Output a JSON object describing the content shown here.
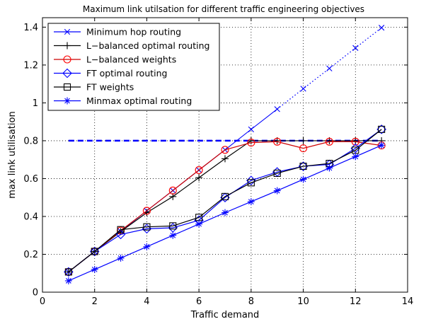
{
  "chart_data": {
    "type": "line",
    "title": "Maximum link utilsation for different traffic engineering objectives",
    "xlabel": "Traffic demand",
    "ylabel": "max link utilisation",
    "xlim": [
      0,
      14
    ],
    "ylim": [
      0,
      1.45
    ],
    "xticks": [
      0,
      2,
      4,
      6,
      8,
      10,
      12,
      14
    ],
    "yticks": [
      0,
      0.2,
      0.4,
      0.6,
      0.8,
      1,
      1.2,
      1.4
    ],
    "grid": true,
    "legend_position": "top-left",
    "series": [
      {
        "name": "Minimum hop routing",
        "color": "#0000ff",
        "marker": "x",
        "x": [
          1,
          2,
          3,
          4,
          5,
          6,
          7,
          8,
          9,
          10,
          11,
          12,
          13
        ],
        "values": [
          0.107,
          0.215,
          0.322,
          0.43,
          0.537,
          0.645,
          0.752,
          0.86,
          0.967,
          1.075,
          1.182,
          1.29,
          1.397
        ],
        "solid_until_x": 9
      },
      {
        "name": "L−balanced optimal routing",
        "color": "#000000",
        "marker": "plus",
        "x": [
          1,
          2,
          3,
          4,
          5,
          6,
          7,
          8,
          9,
          10,
          11,
          12,
          13
        ],
        "values": [
          0.107,
          0.215,
          0.32,
          0.42,
          0.505,
          0.605,
          0.705,
          0.8,
          0.8,
          0.8,
          0.8,
          0.8,
          0.8
        ]
      },
      {
        "name": "L−balanced weights",
        "color": "#ff0000",
        "line_color": "#cc0000",
        "marker": "circle",
        "x": [
          1,
          2,
          3,
          4,
          5,
          6,
          7,
          8,
          9,
          10,
          11,
          12,
          13
        ],
        "values": [
          0.107,
          0.215,
          0.325,
          0.43,
          0.537,
          0.645,
          0.752,
          0.79,
          0.795,
          0.76,
          0.795,
          0.795,
          0.775
        ]
      },
      {
        "name": "FT optimal routing",
        "color": "#0000ff",
        "marker": "diamond",
        "x": [
          1,
          2,
          3,
          4,
          5,
          6,
          7,
          8,
          9,
          10,
          11,
          12,
          13
        ],
        "values": [
          0.107,
          0.215,
          0.305,
          0.335,
          0.34,
          0.38,
          0.5,
          0.59,
          0.635,
          0.665,
          0.675,
          0.76,
          0.86
        ]
      },
      {
        "name": "FT weights",
        "color": "#000000",
        "marker": "square",
        "x": [
          1,
          2,
          3,
          4,
          5,
          6,
          7,
          8,
          9,
          10,
          11,
          12,
          13
        ],
        "values": [
          0.107,
          0.215,
          0.33,
          0.345,
          0.35,
          0.395,
          0.505,
          0.578,
          0.628,
          0.665,
          0.68,
          0.75,
          0.86
        ]
      },
      {
        "name": "Minmax optimal routing",
        "color": "#0000ff",
        "marker": "asterisk",
        "x": [
          1,
          2,
          3,
          4,
          5,
          6,
          7,
          8,
          9,
          10,
          11,
          12,
          13
        ],
        "values": [
          0.06,
          0.12,
          0.18,
          0.24,
          0.3,
          0.36,
          0.42,
          0.478,
          0.536,
          0.596,
          0.656,
          0.716,
          0.776
        ]
      }
    ],
    "reference_line": {
      "y": 0.8,
      "x_range": [
        1,
        13
      ],
      "color": "#0000ff",
      "style": "dashed"
    }
  }
}
